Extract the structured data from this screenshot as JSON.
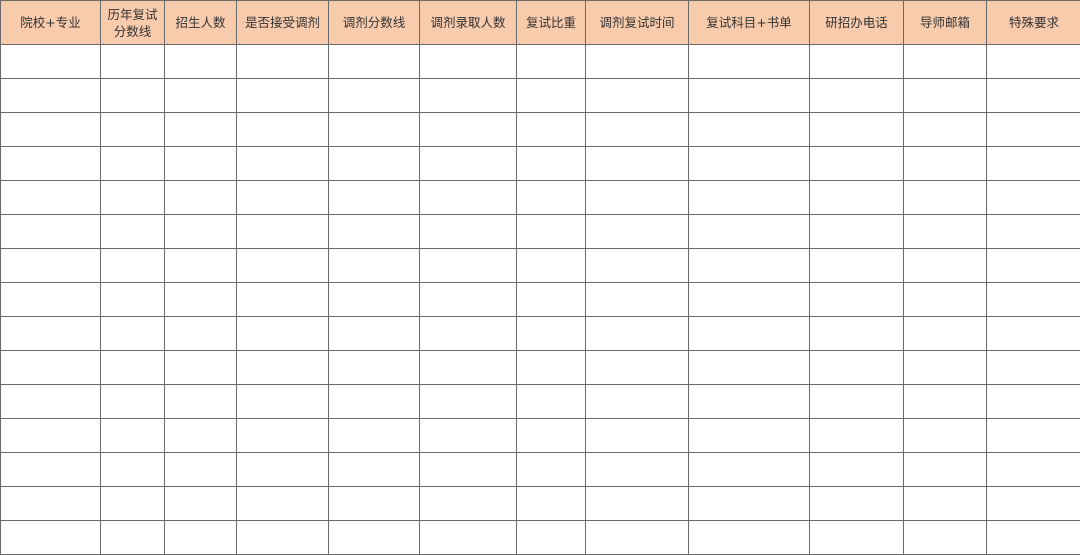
{
  "header_color": "#f8cbad",
  "columns": [
    {
      "label": "院校+专业"
    },
    {
      "label": "历年复试\n分数线"
    },
    {
      "label": "招生人数"
    },
    {
      "label": "是否接受调剂"
    },
    {
      "label": "调剂分数线"
    },
    {
      "label": "调剂录取人数"
    },
    {
      "label": "复试比重"
    },
    {
      "label": "调剂复试时间"
    },
    {
      "label": "复试科目+书单"
    },
    {
      "label": "研招办电话"
    },
    {
      "label": "导师邮箱"
    },
    {
      "label": "特殊要求"
    }
  ],
  "empty_rows": 15
}
